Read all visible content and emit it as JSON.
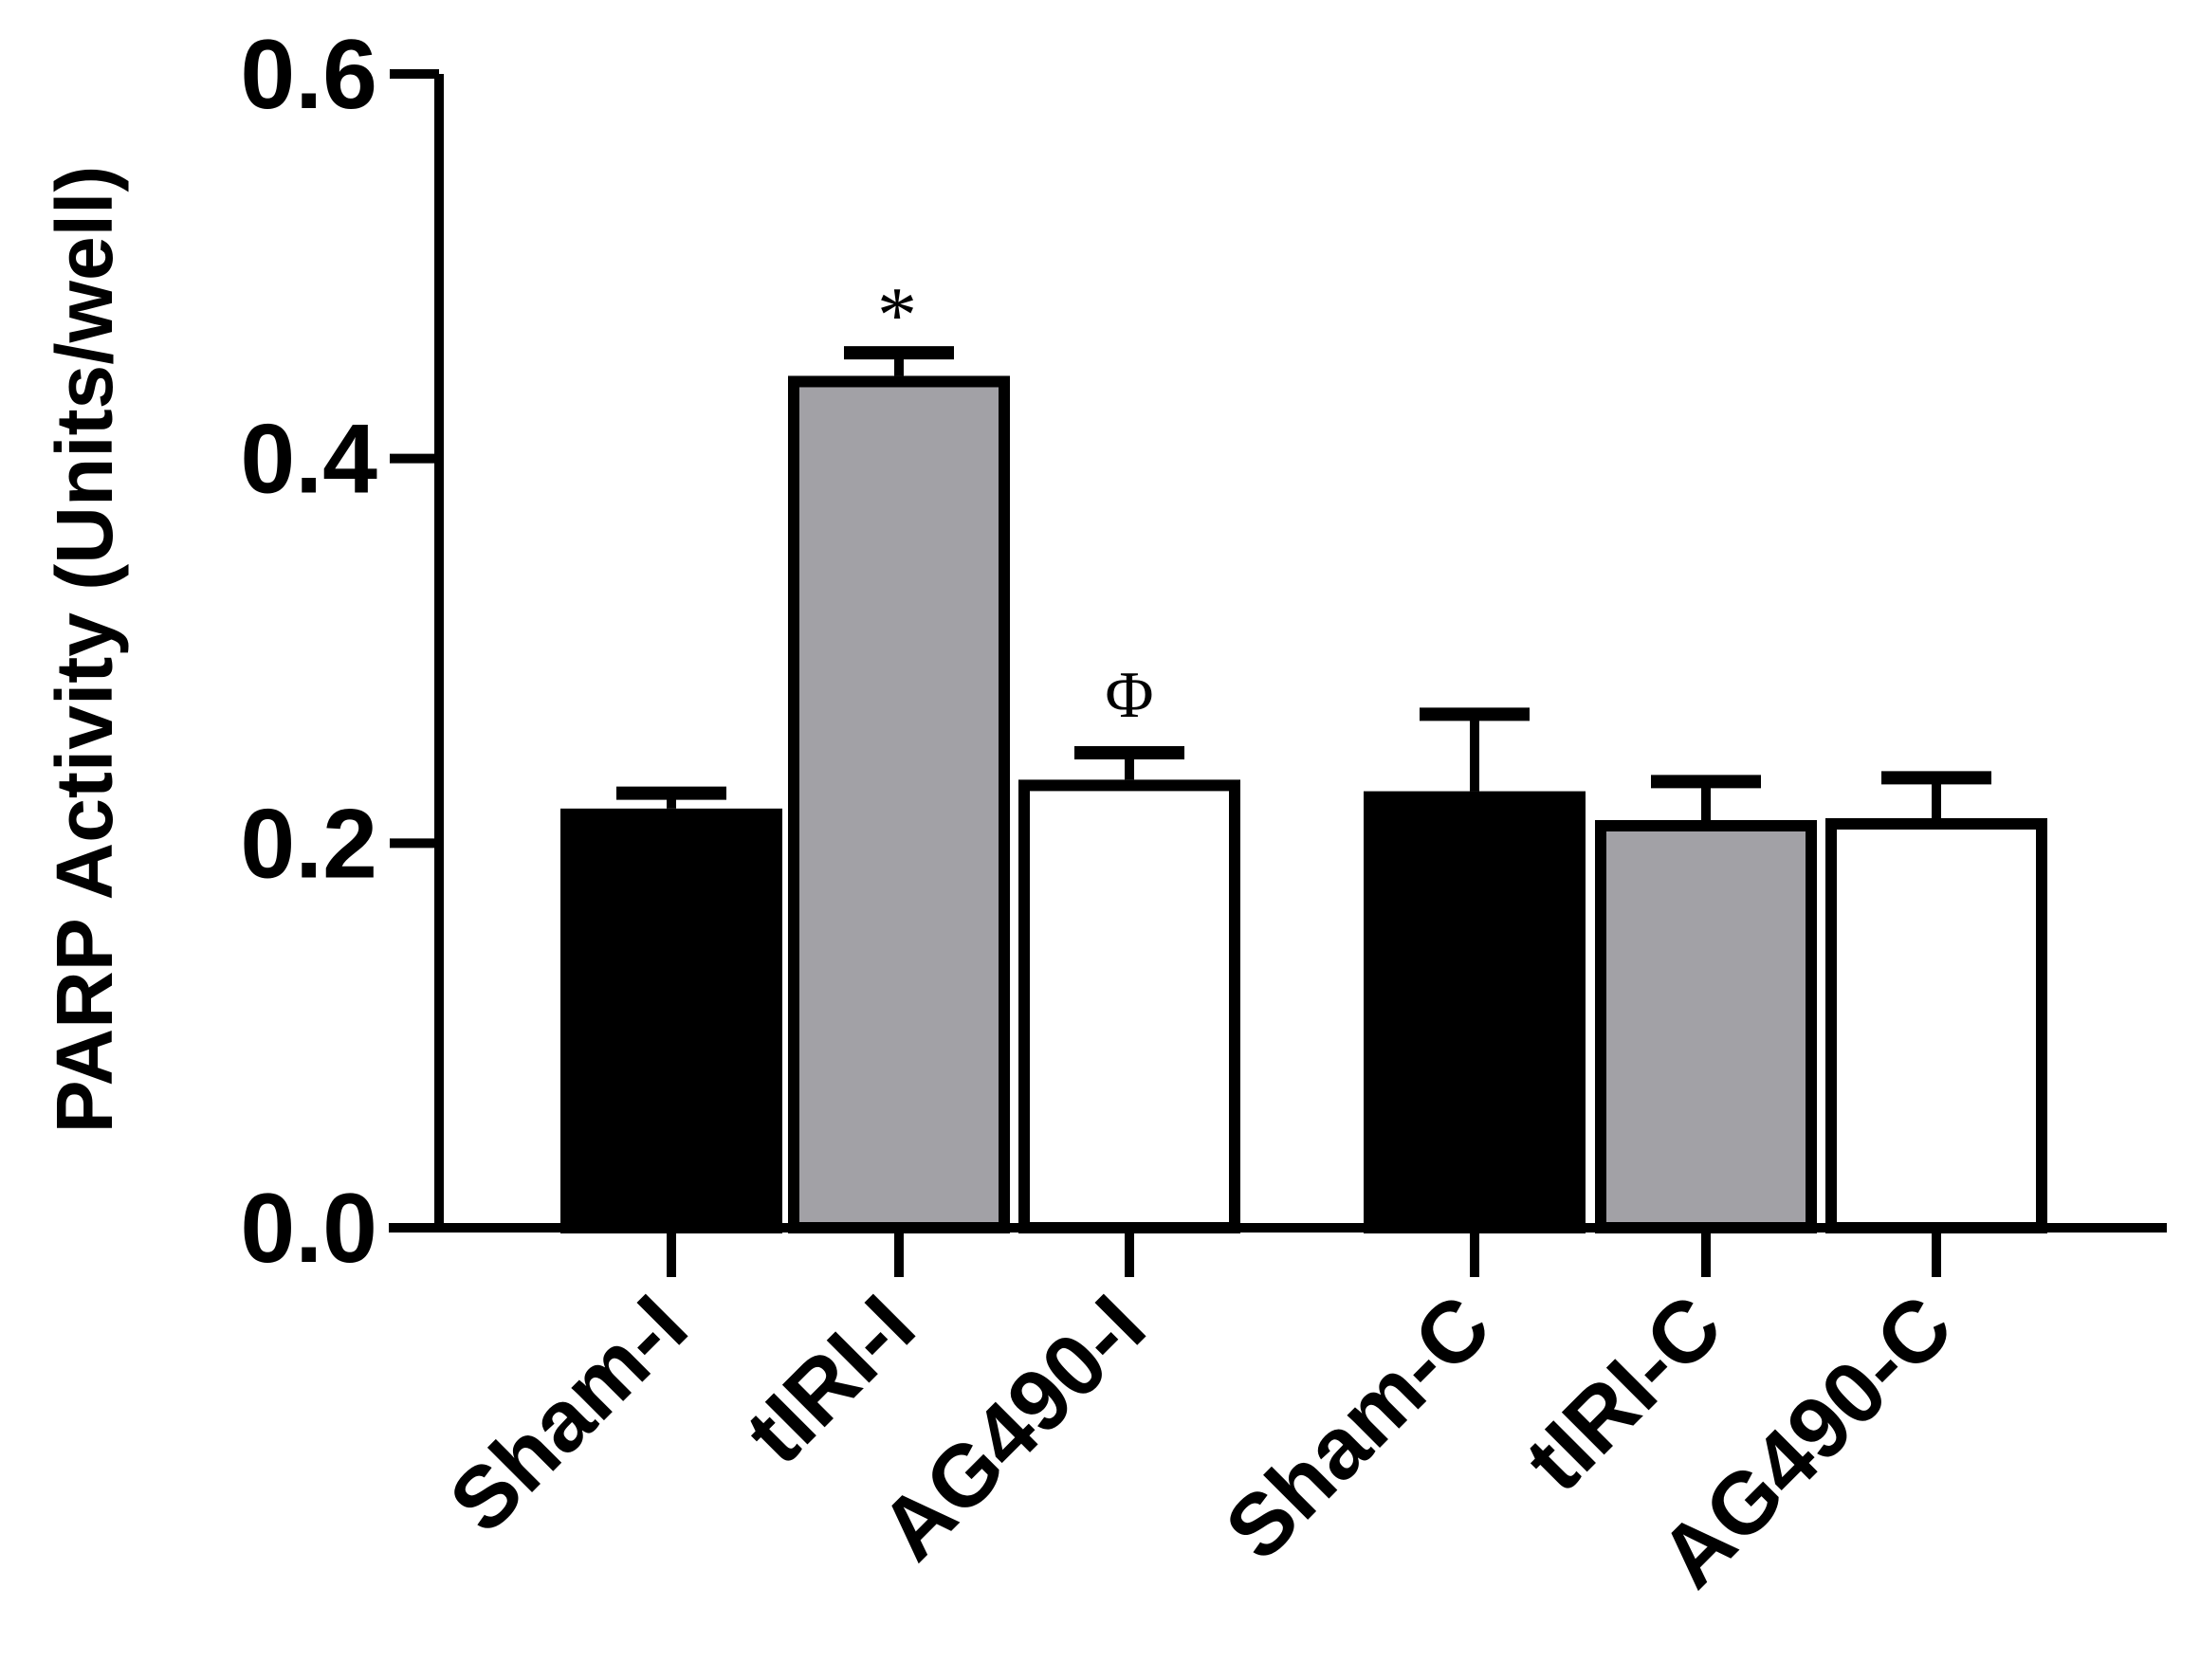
{
  "chart_data": {
    "type": "bar",
    "title": "",
    "xlabel": "",
    "ylabel": "PARP Activity (Units/well)",
    "ylim": [
      0,
      0.6
    ],
    "yticks": [
      0.0,
      0.2,
      0.4,
      0.6
    ],
    "ytick_labels": [
      "0.0",
      "0.2",
      "0.4",
      "0.6"
    ],
    "categories": [
      "Sham-I",
      "tIRI-I",
      "AG490-I",
      "Sham-C",
      "tIRI-C",
      "AG490-C"
    ],
    "values": [
      0.218,
      0.443,
      0.233,
      0.227,
      0.212,
      0.213
    ],
    "errors": [
      0.008,
      0.012,
      0.014,
      0.04,
      0.02,
      0.021
    ],
    "bar_colors": [
      "#000000",
      "#a2a1a6",
      "#ffffff",
      "#000000",
      "#a2a1a6",
      "#ffffff"
    ],
    "edge_color": "#000000",
    "annotations": [
      "",
      "*",
      "",
      "",
      "",
      ""
    ],
    "annotations_lower": [
      "",
      "",
      "Φ",
      "",
      "",
      ""
    ],
    "grid": false,
    "legend": "none"
  }
}
